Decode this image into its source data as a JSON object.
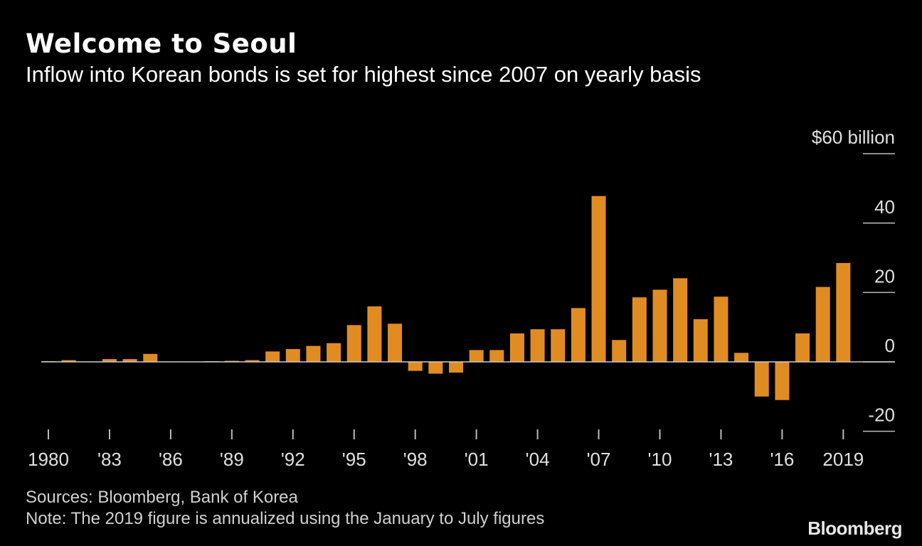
{
  "title": "Welcome to Seoul",
  "subtitle": "Inflow into Korean bonds is set for highest since 2007 on yearly basis",
  "sources": "Sources: Bloomberg, Bank of Korea",
  "note": "Note: The 2019 figure is annualized using the January to July figures",
  "logo": "Bloomberg",
  "colors": {
    "bar": "#e18c22",
    "background": "#000000",
    "text": "#ffffff",
    "axis": "#bbbbbb"
  },
  "chart_data": {
    "type": "bar",
    "title": "Welcome to Seoul",
    "ylabel": "$60 billion",
    "ylim": [
      -20,
      60
    ],
    "yticks": [
      {
        "value": 60,
        "label": "$60 billion"
      },
      {
        "value": 40,
        "label": "40"
      },
      {
        "value": 20,
        "label": "20"
      },
      {
        "value": 0,
        "label": "0"
      },
      {
        "value": -20,
        "label": "-20"
      }
    ],
    "categories": [
      1980,
      1981,
      1982,
      1983,
      1984,
      1985,
      1986,
      1987,
      1988,
      1989,
      1990,
      1991,
      1992,
      1993,
      1994,
      1995,
      1996,
      1997,
      1998,
      1999,
      2000,
      2001,
      2002,
      2003,
      2004,
      2005,
      2006,
      2007,
      2008,
      2009,
      2010,
      2011,
      2012,
      2013,
      2014,
      2015,
      2016,
      2017,
      2018,
      2019
    ],
    "values": [
      0.2,
      0.5,
      0.1,
      0.8,
      0.8,
      2.3,
      0.1,
      0.1,
      0.2,
      0.3,
      0.5,
      3.0,
      3.7,
      4.6,
      5.4,
      10.6,
      16.0,
      11.0,
      -2.6,
      -3.4,
      -3.1,
      3.4,
      3.4,
      8.2,
      9.4,
      9.4,
      15.5,
      47.8,
      6.3,
      18.6,
      20.8,
      24.1,
      12.3,
      18.8,
      2.6,
      -10.0,
      -11.0,
      8.2,
      21.6,
      28.5
    ],
    "xticks": [
      {
        "year": 1980,
        "label": "1980"
      },
      {
        "year": 1983,
        "label": "'83"
      },
      {
        "year": 1986,
        "label": "'86"
      },
      {
        "year": 1989,
        "label": "'89"
      },
      {
        "year": 1992,
        "label": "'92"
      },
      {
        "year": 1995,
        "label": "'95"
      },
      {
        "year": 1998,
        "label": "'98"
      },
      {
        "year": 2001,
        "label": "'01"
      },
      {
        "year": 2004,
        "label": "'04"
      },
      {
        "year": 2007,
        "label": "'07"
      },
      {
        "year": 2010,
        "label": "'10"
      },
      {
        "year": 2013,
        "label": "'13"
      },
      {
        "year": 2016,
        "label": "'16"
      },
      {
        "year": 2019,
        "label": "2019"
      }
    ],
    "grid": false,
    "legend": "none"
  }
}
